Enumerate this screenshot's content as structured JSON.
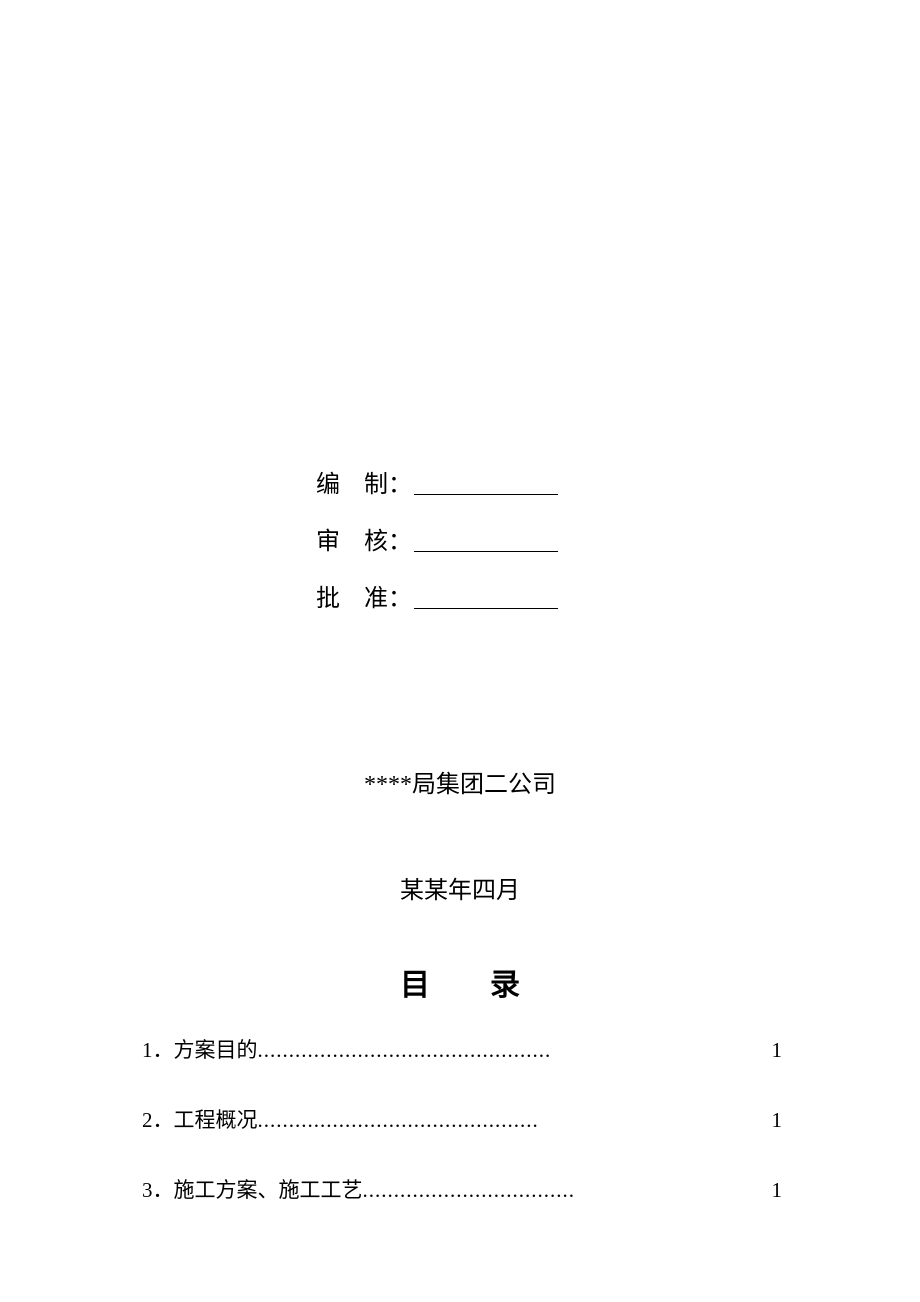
{
  "signatures": {
    "rows": [
      {
        "label": "编　制：",
        "line": "＿＿＿＿＿＿"
      },
      {
        "label": "审　核：",
        "line": "＿＿＿＿＿＿"
      },
      {
        "label": "批　准：",
        "line": "＿＿＿＿＿＿"
      }
    ]
  },
  "company": "****局集团二公司",
  "date": "某某年四月",
  "toc": {
    "title": "目　　录",
    "entries": [
      {
        "label": "1．方案目的",
        "dots": "...............................................",
        "page": "1"
      },
      {
        "label": "2．工程概况 ",
        "dots": ".............................................",
        "page": "1"
      },
      {
        "label": "3．施工方案、施工工艺 ",
        "dots": "..................................",
        "page": "1"
      }
    ]
  }
}
